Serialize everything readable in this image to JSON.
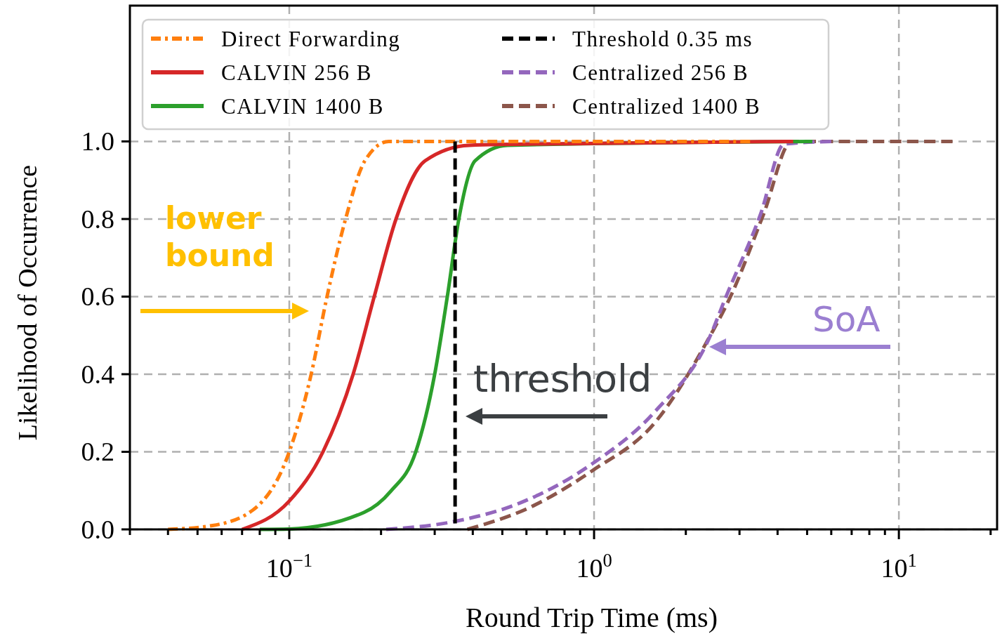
{
  "chart_data": {
    "type": "line",
    "xlabel": "Round Trip Time (ms)",
    "ylabel": "Likelihood of Occurrence",
    "log": "x",
    "grid": true,
    "legend": "top",
    "xlim": [
      0.03,
      21
    ],
    "ylim": [
      0,
      1.35
    ],
    "xticks": [
      {
        "value": 0.03,
        "label": null
      },
      {
        "value": 0.04,
        "label": null
      },
      {
        "value": 0.05,
        "label": null
      },
      {
        "value": 0.06,
        "label": null
      },
      {
        "value": 0.07,
        "label": null
      },
      {
        "value": 0.08,
        "label": null
      },
      {
        "value": 0.09,
        "label": null
      },
      {
        "value": 0.1,
        "label": "10$^{−1}$"
      },
      {
        "value": 0.2,
        "label": null
      },
      {
        "value": 0.3,
        "label": null
      },
      {
        "value": 0.4,
        "label": null
      },
      {
        "value": 0.5,
        "label": null
      },
      {
        "value": 0.6,
        "label": null
      },
      {
        "value": 0.7,
        "label": null
      },
      {
        "value": 0.8,
        "label": null
      },
      {
        "value": 0.9,
        "label": null
      },
      {
        "value": 1,
        "label": "10$^{0}$"
      },
      {
        "value": 2,
        "label": null
      },
      {
        "value": 3,
        "label": null
      },
      {
        "value": 4,
        "label": null
      },
      {
        "value": 5,
        "label": null
      },
      {
        "value": 6,
        "label": null
      },
      {
        "value": 7,
        "label": null
      },
      {
        "value": 8,
        "label": null
      },
      {
        "value": 9,
        "label": null
      },
      {
        "value": 10,
        "label": "10$^{1}$"
      },
      {
        "value": 20,
        "label": null
      }
    ],
    "yticks": [
      {
        "value": 0,
        "label": "0.0"
      },
      0.2,
      0.4,
      0.6,
      0.8,
      {
        "value": 1,
        "label": "1.0"
      }
    ],
    "series": [
      {
        "name": "Direct Forwarding",
        "color": "#ff7f0e",
        "line_style": "dashdot",
        "x": [
          0.04,
          0.056,
          0.076,
          0.1,
          0.118,
          0.133,
          0.153,
          0.177,
          0.212,
          0.3,
          3.25
        ],
        "values": [
          0,
          0.01,
          0.05,
          0.2,
          0.4,
          0.6,
          0.8,
          0.95,
          1,
          1,
          1
        ]
      },
      {
        "name": "CALVIN 256 B",
        "color": "#d62728",
        "line_style": "solid",
        "x": [
          0.07,
          0.1,
          0.129,
          0.162,
          0.19,
          0.224,
          0.279,
          0.39,
          1,
          4.5
        ],
        "values": [
          0,
          0.073,
          0.2,
          0.4,
          0.6,
          0.8,
          0.95,
          0.99,
          0.995,
          1
        ]
      },
      {
        "name": "CALVIN 1400 B",
        "color": "#2ca02c",
        "line_style": "solid",
        "x": [
          0.08,
          0.1,
          0.176,
          0.215,
          0.26,
          0.3,
          0.33,
          0.36,
          0.407,
          0.52,
          5.2
        ],
        "values": [
          0,
          0.001,
          0.044,
          0.098,
          0.2,
          0.4,
          0.6,
          0.8,
          0.95,
          0.99,
          1
        ]
      },
      {
        "name": "Centralized 256 B",
        "color": "#9467bd",
        "line_style": "dashed",
        "x": [
          0.208,
          0.346,
          0.575,
          0.99,
          1.59,
          2.39,
          2.7,
          3.52,
          4.2,
          6
        ],
        "values": [
          0,
          0.02,
          0.069,
          0.17,
          0.305,
          0.494,
          0.597,
          0.813,
          0.993,
          1
        ]
      },
      {
        "name": "Centralized 1400 B",
        "color": "#8c564b",
        "line_style": "dashed",
        "x": [
          0.384,
          0.613,
          0.99,
          1.59,
          2.3,
          2.84,
          3.6,
          4.45,
          15
        ],
        "values": [
          0,
          0.056,
          0.152,
          0.277,
          0.472,
          0.61,
          0.813,
          1,
          1
        ]
      }
    ],
    "ref_lines": [
      {
        "axis": "x",
        "value": 0.35,
        "label": "Threshold 0.35 ms",
        "color": "#000000",
        "line_style": "dashed"
      }
    ],
    "annotations": [
      "lower bound",
      "threshold",
      "SoA"
    ]
  }
}
